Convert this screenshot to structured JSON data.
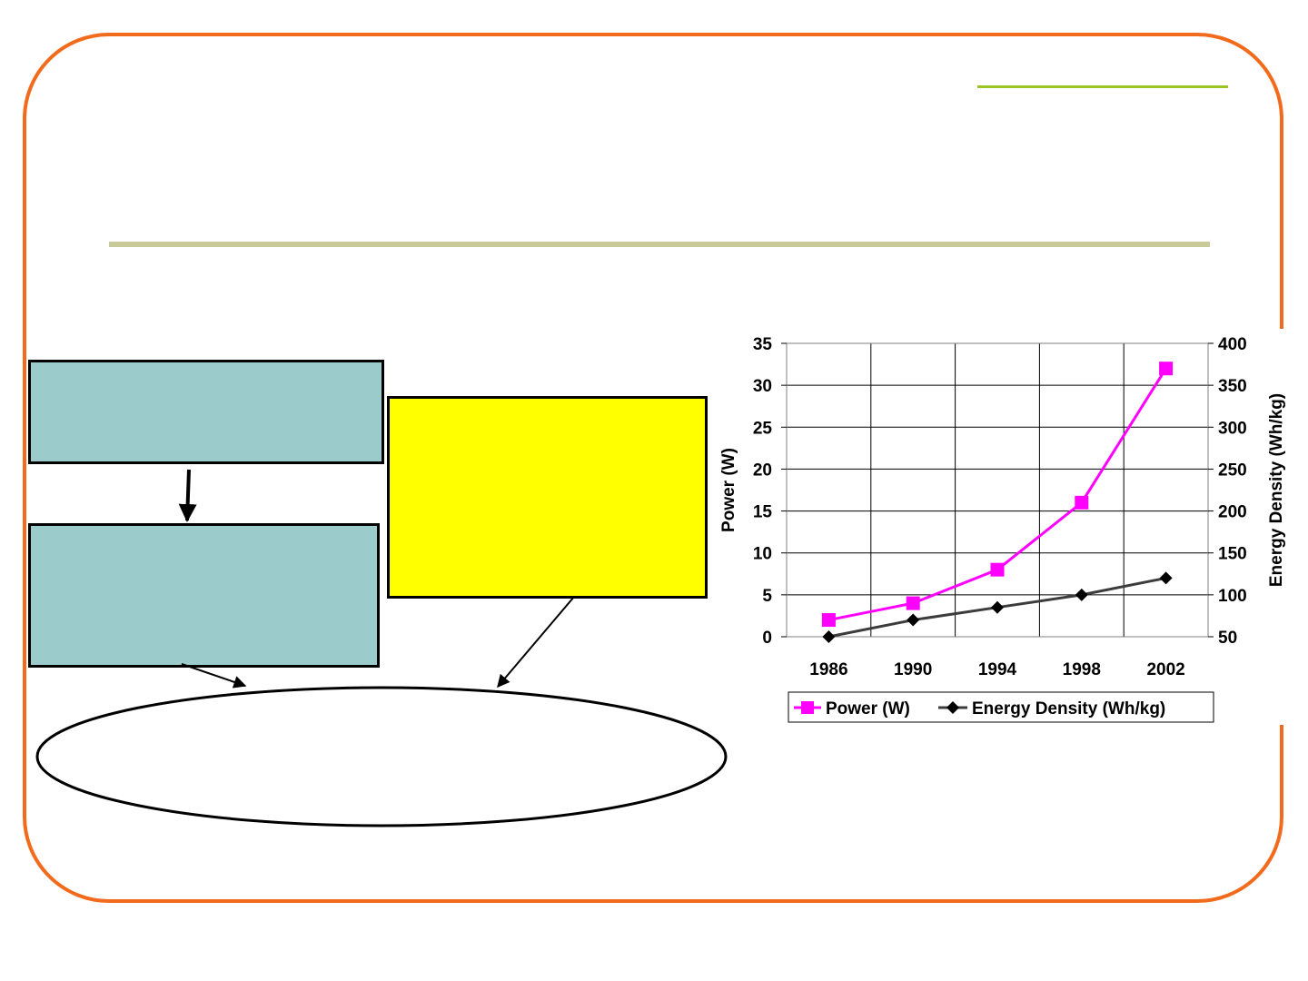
{
  "colors": {
    "frame": "#f26b1d",
    "accent_line": "#9dc427",
    "rule": "#c8ca99",
    "box_teal": "#9ccbcb",
    "box_yellow": "#ffff00",
    "power_series": "#ff00ff",
    "energy_series": "#3c3c3c"
  },
  "diagram": {
    "box1_text": "",
    "box2_text": "",
    "box3_text": "",
    "ellipse_text": ""
  },
  "chart_data": {
    "type": "line",
    "title": "",
    "categories": [
      "1986",
      "1990",
      "1994",
      "1998",
      "2002"
    ],
    "xlabel": "",
    "ylabel": "Power (W)",
    "y2label": "Energy Density (Wh/kg)",
    "ylim": [
      0,
      35
    ],
    "y2lim": [
      50,
      400
    ],
    "yticks": [
      0,
      5,
      10,
      15,
      20,
      25,
      30,
      35
    ],
    "y2ticks": [
      50,
      100,
      150,
      200,
      250,
      300,
      350,
      400
    ],
    "grid": true,
    "legend": "bottom",
    "series": [
      {
        "name": "Power (W)",
        "axis": "left",
        "marker": "square",
        "color": "#ff00ff",
        "values": [
          2,
          4,
          8,
          16,
          32
        ]
      },
      {
        "name": "Energy Density (Wh/kg)",
        "axis": "right",
        "marker": "diamond",
        "color": "#3c3c3c",
        "values": [
          50,
          70,
          85,
          100,
          120
        ]
      }
    ]
  }
}
